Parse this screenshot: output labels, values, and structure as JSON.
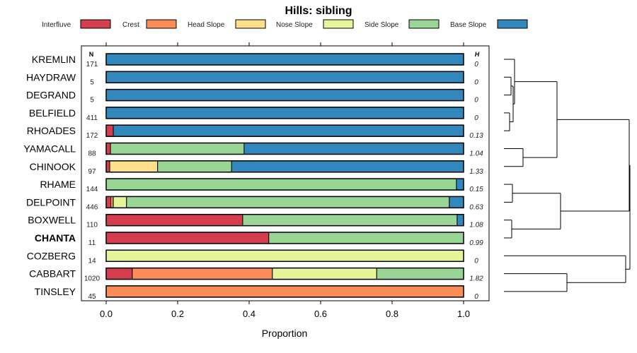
{
  "chart_data": {
    "type": "bar",
    "orientation": "horizontal",
    "stacked": true,
    "title": "Hills: sibling",
    "xlabel": "Proportion",
    "ylabel": "",
    "xlim": [
      0,
      1
    ],
    "x_ticks": [
      "0.0",
      "0.2",
      "0.4",
      "0.6",
      "0.8",
      "1.0"
    ],
    "x_tick_values": [
      0,
      0.2,
      0.4,
      0.6,
      0.8,
      1.0
    ],
    "column_headers": {
      "n": "N",
      "h": "H"
    },
    "legend_position": "top",
    "series": [
      {
        "name": "Interfluve",
        "color": "#d53e4f"
      },
      {
        "name": "Crest",
        "color": "#fc8d59"
      },
      {
        "name": "Head Slope",
        "color": "#fee08b"
      },
      {
        "name": "Nose Slope",
        "color": "#e6f598"
      },
      {
        "name": "Side Slope",
        "color": "#99d594"
      },
      {
        "name": "Base Slope",
        "color": "#3288bd"
      }
    ],
    "categories": [
      "KREMLIN",
      "HAYDRAW",
      "DEGRAND",
      "BELFIELD",
      "RHOADES",
      "YAMACALL",
      "CHINOOK",
      "RHAME",
      "DELPOINT",
      "BOXWELL",
      "CHANTA",
      "COZBERG",
      "CABBART",
      "TINSLEY"
    ],
    "highlight": "CHANTA",
    "rows": [
      {
        "name": "KREMLIN",
        "n": "171",
        "h": "0",
        "values": [
          0,
          0,
          0,
          0,
          0,
          1
        ]
      },
      {
        "name": "HAYDRAW",
        "n": "5",
        "h": "0",
        "values": [
          0,
          0,
          0,
          0,
          0,
          1
        ]
      },
      {
        "name": "DEGRAND",
        "n": "5",
        "h": "0",
        "values": [
          0,
          0,
          0,
          0,
          0,
          1
        ]
      },
      {
        "name": "BELFIELD",
        "n": "411",
        "h": "0",
        "values": [
          0,
          0,
          0,
          0,
          0,
          1
        ]
      },
      {
        "name": "RHOADES",
        "n": "172",
        "h": "0.13",
        "values": [
          0.02,
          0,
          0,
          0,
          0,
          0.98
        ]
      },
      {
        "name": "YAMACALL",
        "n": "88",
        "h": "1.04",
        "values": [
          0.012,
          0,
          0,
          0,
          0.374,
          0.614
        ]
      },
      {
        "name": "CHINOOK",
        "n": "97",
        "h": "1.33",
        "values": [
          0.01,
          0,
          0.134,
          0,
          0.207,
          0.649
        ]
      },
      {
        "name": "RHAME",
        "n": "144",
        "h": "0.15",
        "values": [
          0,
          0,
          0,
          0,
          0.98,
          0.02
        ]
      },
      {
        "name": "DELPOINT",
        "n": "446",
        "h": "0.63",
        "values": [
          0.013,
          0.007,
          0,
          0.037,
          0.903,
          0.04
        ]
      },
      {
        "name": "BOXWELL",
        "n": "110",
        "h": "1.08",
        "values": [
          0.382,
          0,
          0,
          0,
          0.6,
          0.018
        ]
      },
      {
        "name": "CHANTA",
        "n": "11",
        "h": "0.99",
        "values": [
          0.455,
          0,
          0,
          0,
          0.545,
          0
        ]
      },
      {
        "name": "COZBERG",
        "n": "14",
        "h": "0",
        "values": [
          0,
          0,
          0,
          1,
          0,
          0
        ]
      },
      {
        "name": "CABBART",
        "n": "1020",
        "h": "1.82",
        "values": [
          0.073,
          0.392,
          0,
          0.292,
          0.243,
          0
        ]
      },
      {
        "name": "TINSLEY",
        "n": "45",
        "h": "0",
        "values": [
          0,
          1,
          0,
          0,
          0,
          0
        ]
      }
    ],
    "dendrogram": {
      "description": "hierarchical clustering of rows",
      "merges": [
        [
          "DEGRAND",
          "BELFIELD"
        ],
        [
          "HAYDRAW",
          "DEGRAND+BELFIELD"
        ],
        [
          "KREMLIN",
          "HAYDRAW+DEGRAND+BELFIELD"
        ],
        [
          "YAMACALL",
          "CHINOOK"
        ],
        [
          "RHAME",
          "DELPOINT"
        ],
        [
          "BOXWELL",
          "CHANTA"
        ],
        [
          "RHAME+DELPOINT",
          "BOXWELL+CHANTA"
        ],
        [
          "CABBART",
          "TINSLEY"
        ]
      ]
    }
  }
}
